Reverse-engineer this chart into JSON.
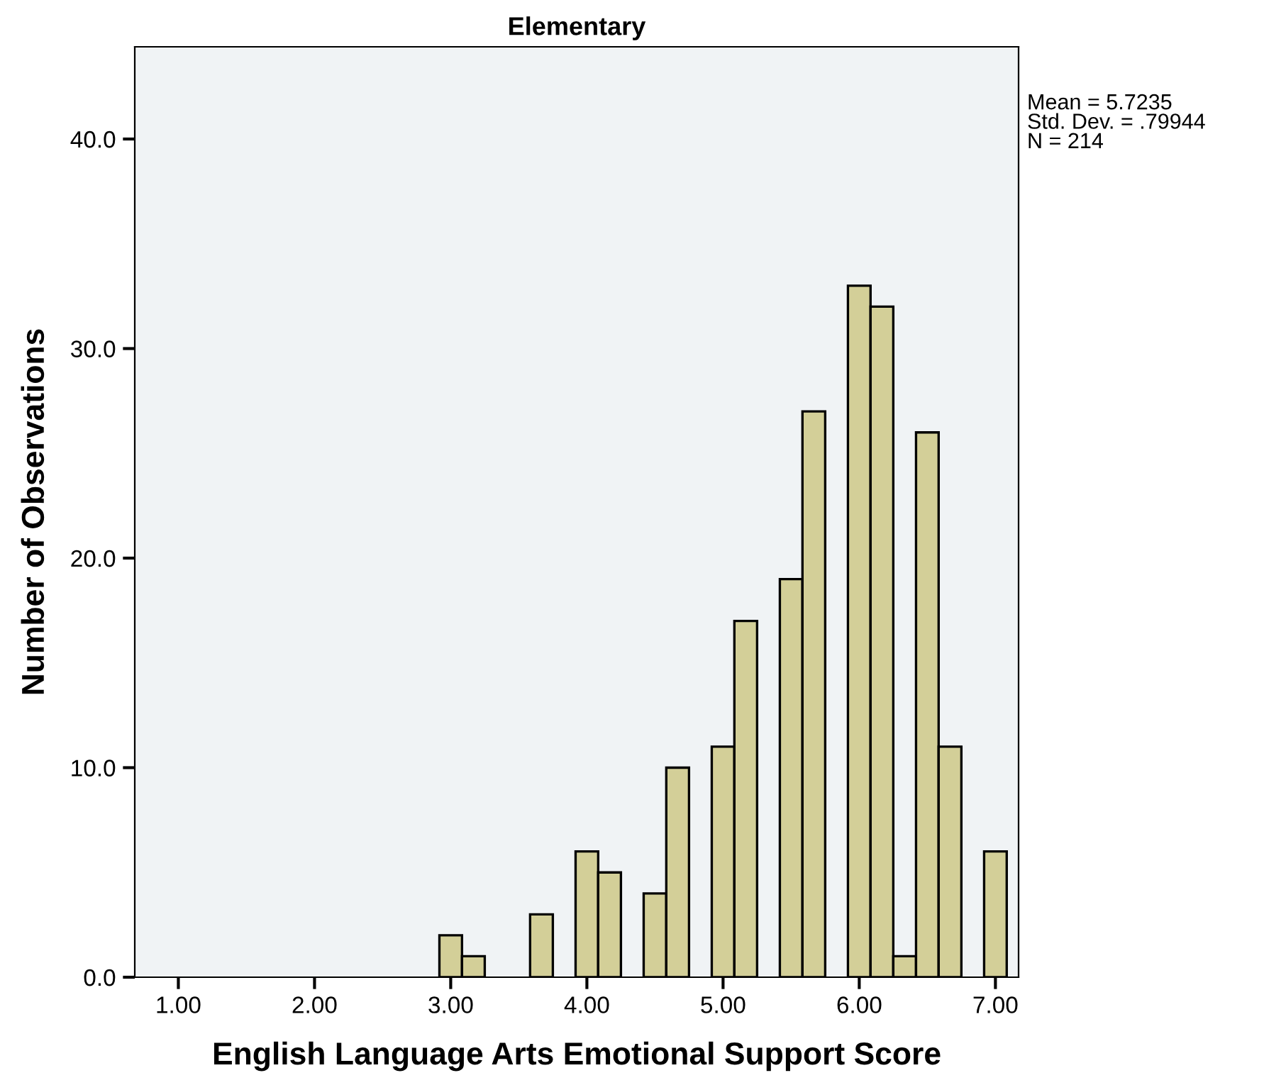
{
  "chart_data": {
    "type": "histogram",
    "title": "Elementary",
    "xlabel": "English Language Arts Emotional Support Score",
    "ylabel": "Number of Observations",
    "bins": [
      2.917,
      3.083,
      3.25,
      3.417,
      3.583,
      3.75,
      3.917,
      4.083,
      4.25,
      4.417,
      4.583,
      4.75,
      4.917,
      5.083,
      5.25,
      5.417,
      5.583,
      5.75,
      5.917,
      6.083,
      6.25,
      6.417,
      6.583,
      6.75,
      6.917,
      7.083
    ],
    "values": [
      2,
      1,
      0,
      0,
      3,
      0,
      6,
      5,
      0,
      4,
      10,
      0,
      11,
      17,
      0,
      19,
      27,
      0,
      33,
      32,
      1,
      26,
      11,
      0,
      6
    ],
    "color": "#d3cf98",
    "xlim": [
      0.68,
      7.17
    ],
    "xticks": [
      {
        "value": 1,
        "label": "1.00"
      },
      {
        "value": 2,
        "label": "2.00"
      },
      {
        "value": 3,
        "label": "3.00"
      },
      {
        "value": 4,
        "label": "4.00"
      },
      {
        "value": 5,
        "label": "5.00"
      },
      {
        "value": 6,
        "label": "6.00"
      },
      {
        "value": 7,
        "label": "7.00"
      }
    ],
    "ylim": [
      0,
      44.4
    ],
    "yticks": [
      {
        "value": 0,
        "label": "0.0"
      },
      {
        "value": 10,
        "label": "10.0"
      },
      {
        "value": 20,
        "label": "20.0"
      },
      {
        "value": 30,
        "label": "30.0"
      },
      {
        "value": 40,
        "label": "40.0"
      }
    ],
    "annotations": [
      "Mean = 5.7235\nStd. Dev. = .79944\nN = 214"
    ]
  }
}
